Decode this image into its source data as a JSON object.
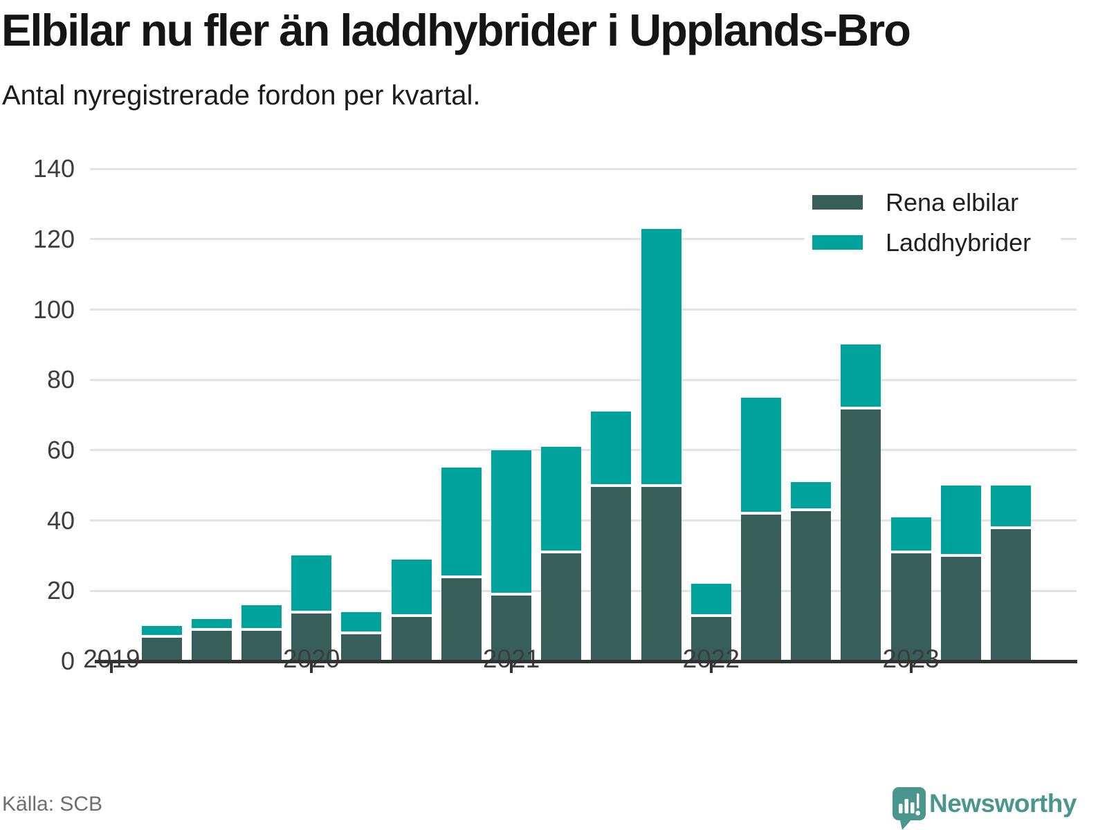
{
  "title": "Elbilar nu fler än laddhybrider i Upplands-Bro",
  "subtitle": "Antal nyregistrerade fordon per kvartal.",
  "source": "Källa: SCB",
  "brand": {
    "name": "Newsworthy",
    "icon": "newsworthy-speech-bubble-bar-chart-icon",
    "color": "#4A968F"
  },
  "colors": {
    "rena_elbilar": "#375E58",
    "laddhybrider": "#00A39B",
    "gridline": "#e3e3e3",
    "axis": "#333333",
    "tick_label": "#3d3d3d"
  },
  "legend": [
    {
      "label": "Rena elbilar",
      "color": "#375E58"
    },
    {
      "label": "Laddhybrider",
      "color": "#00A39B"
    }
  ],
  "chart_data": {
    "type": "bar",
    "stacked": true,
    "title": "Elbilar nu fler än laddhybrider i Upplands-Bro",
    "subtitle": "Antal nyregistrerade fordon per kvartal.",
    "categories": [
      "2019 Q2",
      "2019 Q3",
      "2019 Q4",
      "2020 Q1",
      "2020 Q2",
      "2020 Q3",
      "2020 Q4",
      "2021 Q1",
      "2021 Q2",
      "2021 Q3",
      "2021 Q4",
      "2022 Q1",
      "2022 Q2",
      "2022 Q3",
      "2022 Q4",
      "2023 Q1",
      "2023 Q2",
      "2023 Q3"
    ],
    "series": [
      {
        "name": "Rena elbilar",
        "values": [
          7,
          9,
          9,
          14,
          8,
          13,
          24,
          19,
          31,
          50,
          50,
          13,
          42,
          43,
          72,
          31,
          30,
          38
        ]
      },
      {
        "name": "Laddhybrider",
        "values": [
          3,
          3,
          7,
          16,
          6,
          16,
          31,
          41,
          30,
          21,
          73,
          9,
          33,
          8,
          18,
          10,
          20,
          12
        ]
      }
    ],
    "totals": [
      10,
      12,
      16,
      30,
      14,
      29,
      55,
      60,
      61,
      71,
      123,
      22,
      75,
      51,
      90,
      41,
      50,
      50
    ],
    "x_tick_labels": [
      "2019",
      "2020",
      "2021",
      "2022",
      "2023"
    ],
    "x_tick_at_quarter": "Q1",
    "y_ticks": [
      0,
      20,
      40,
      60,
      80,
      100,
      120,
      140
    ],
    "ylim": [
      0,
      145
    ],
    "grid": "horizontal",
    "legend_position": "top-right",
    "ylabel": "",
    "xlabel": ""
  }
}
